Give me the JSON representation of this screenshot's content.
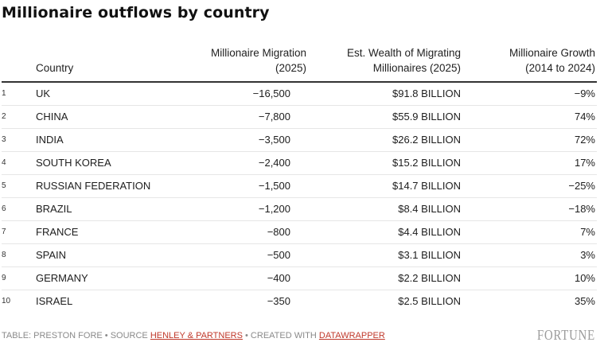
{
  "title": "Millionaire outflows by country",
  "table": {
    "headers": {
      "country": "Country",
      "migration_line1": "Millionaire Migration",
      "migration_line2": "(2025)",
      "wealth_line1": "Est. Wealth of Migrating",
      "wealth_line2": "Millionaires (2025)",
      "growth_line1": "Millionaire Growth",
      "growth_line2": "(2014 to 2024)"
    },
    "rows": [
      {
        "rank": "1",
        "country": "UK",
        "migration": "−16,500",
        "wealth": "$91.8 BILLION",
        "growth": "−9%"
      },
      {
        "rank": "2",
        "country": "CHINA",
        "migration": "−7,800",
        "wealth": "$55.9 BILLION",
        "growth": "74%"
      },
      {
        "rank": "3",
        "country": "INDIA",
        "migration": "−3,500",
        "wealth": "$26.2 BILLION",
        "growth": "72%"
      },
      {
        "rank": "4",
        "country": "SOUTH KOREA",
        "migration": "−2,400",
        "wealth": "$15.2 BILLION",
        "growth": "17%"
      },
      {
        "rank": "5",
        "country": "RUSSIAN FEDERATION",
        "migration": "−1,500",
        "wealth": "$14.7 BILLION",
        "growth": "−25%"
      },
      {
        "rank": "6",
        "country": "BRAZIL",
        "migration": "−1,200",
        "wealth": "$8.4 BILLION",
        "growth": "−18%"
      },
      {
        "rank": "7",
        "country": "FRANCE",
        "migration": "−800",
        "wealth": "$4.4 BILLION",
        "growth": "7%"
      },
      {
        "rank": "8",
        "country": "SPAIN",
        "migration": "−500",
        "wealth": "$3.1 BILLION",
        "growth": "3%"
      },
      {
        "rank": "9",
        "country": "GERMANY",
        "migration": "−400",
        "wealth": "$2.2 BILLION",
        "growth": "10%"
      },
      {
        "rank": "10",
        "country": "ISRAEL",
        "migration": "−350",
        "wealth": "$2.5 BILLION",
        "growth": "35%"
      }
    ]
  },
  "footer": {
    "prefix": "TABLE: PRESTON FORE • SOURCE ",
    "source_link": "HENLEY & PARTNERS",
    "middle": " • CREATED WITH ",
    "tool_link": "DATAWRAPPER",
    "logo_text": "FORTUNE"
  },
  "colors": {
    "link": "#c0392b",
    "header_rule": "#333333",
    "row_rule": "#e6e6e6",
    "footer_text": "#8a8a8a"
  },
  "chart_data": {
    "type": "table",
    "title": "Millionaire outflows by country",
    "columns": [
      "Country",
      "Millionaire Migration (2025)",
      "Est. Wealth of Migrating Millionaires (2025)",
      "Millionaire Growth (2014 to 2024)"
    ],
    "rows": [
      [
        "UK",
        -16500,
        "$91.8 BILLION",
        "-9%"
      ],
      [
        "CHINA",
        -7800,
        "$55.9 BILLION",
        "74%"
      ],
      [
        "INDIA",
        -3500,
        "$26.2 BILLION",
        "72%"
      ],
      [
        "SOUTH KOREA",
        -2400,
        "$15.2 BILLION",
        "17%"
      ],
      [
        "RUSSIAN FEDERATION",
        -1500,
        "$14.7 BILLION",
        "-25%"
      ],
      [
        "BRAZIL",
        -1200,
        "$8.4 BILLION",
        "-18%"
      ],
      [
        "FRANCE",
        -800,
        "$4.4 BILLION",
        "7%"
      ],
      [
        "SPAIN",
        -500,
        "$3.1 BILLION",
        "3%"
      ],
      [
        "GERMANY",
        -400,
        "$2.2 BILLION",
        "10%"
      ],
      [
        "ISRAEL",
        -350,
        "$2.5 BILLION",
        "35%"
      ]
    ]
  }
}
